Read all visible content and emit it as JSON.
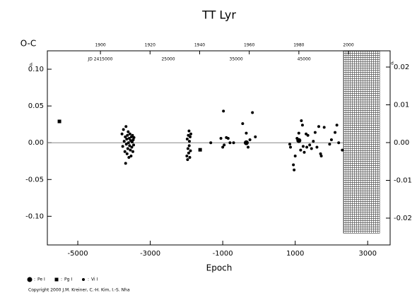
{
  "chart_data": {
    "type": "scatter",
    "title": "TT Lyr",
    "ylabel": "O-C",
    "xlabel": "Epoch",
    "y_unit": "d",
    "y2_unit": "d",
    "xlim": [
      -5840,
      3620
    ],
    "xticks": [
      -5000,
      -3000,
      -1000,
      1000,
      3000
    ],
    "ylim": [
      -0.139,
      0.125
    ],
    "yticks": [
      {
        "value": 0.1,
        "label": "0.10"
      },
      0.05,
      {
        "value": 0,
        "label": "0.00"
      },
      -0.05,
      {
        "value": -0.1,
        "label": "-0.10"
      }
    ],
    "y2lim": [
      -0.0271,
      0.0243
    ],
    "y2ticks": [
      0.02,
      0.01,
      {
        "value": 0,
        "label": "0.00"
      },
      -0.01,
      -0.02
    ],
    "x2lim": [
      1878.6,
      2016.8
    ],
    "x2ticks": [
      1900,
      1920,
      1940,
      1960,
      1980,
      2000
    ],
    "jdlim": [
      2407200,
      2457680
    ],
    "jdticks": [
      {
        "value": 2415000,
        "label": "JD 2415000"
      },
      {
        "value": 2425000,
        "label": "25000"
      },
      {
        "value": 2435000,
        "label": "35000"
      },
      {
        "value": 2445000,
        "label": "45000"
      }
    ],
    "shaded_region": {
      "x": [
        2330,
        3330
      ],
      "y": [
        -0.123,
        0.125
      ]
    },
    "legend_separator": ":",
    "series": [
      {
        "name": "Pe I",
        "marker": "circle",
        "color": "#000000",
        "x": [
          -350,
          1100
        ],
        "values": [
          0.0,
          0.003
        ]
      },
      {
        "name": "Pg I",
        "marker": "square",
        "color": "#000000",
        "x": [
          -5507,
          -1624
        ],
        "values": [
          0.029,
          -0.0096
        ]
      },
      {
        "name": "Vi I",
        "marker": "dot",
        "color": "#000000",
        "x": [
          -3780,
          -3760,
          -3740,
          -3720,
          -3700,
          -3690,
          -3680,
          -3670,
          -3660,
          -3650,
          -3640,
          -3630,
          -3620,
          -3610,
          -3600,
          -3590,
          -3580,
          -3570,
          -3560,
          -3550,
          -3540,
          -3530,
          -3520,
          -3510,
          -3500,
          -3490,
          -3480,
          -3470,
          -3460,
          -3450,
          -1990,
          -1980,
          -1970,
          -1960,
          -1950,
          -1940,
          -1930,
          -1925,
          -1920,
          -1910,
          -1900,
          -1890,
          -1880,
          -1330,
          -1050,
          -1000,
          -980,
          -960,
          -900,
          -850,
          -800,
          -700,
          -450,
          -350,
          -300,
          -250,
          -180,
          -100,
          850,
          870,
          950,
          970,
          1000,
          1050,
          1100,
          1150,
          1170,
          1200,
          1220,
          1250,
          1300,
          1320,
          1350,
          1400,
          1450,
          1500,
          1550,
          1600,
          1650,
          1700,
          1720,
          1800,
          1950,
          2000,
          2100,
          2150,
          2200,
          2300
        ],
        "values": [
          0.012,
          -0.005,
          0.018,
          0.002,
          -0.012,
          0.008,
          -0.028,
          0.022,
          -0.002,
          0.005,
          -0.015,
          0.01,
          -0.008,
          0.015,
          0.0,
          -0.02,
          0.006,
          -0.004,
          0.012,
          -0.01,
          0.003,
          -0.018,
          0.008,
          -0.006,
          0.001,
          0.01,
          -0.012,
          0.004,
          -0.003,
          0.007,
          -0.018,
          0.005,
          -0.023,
          -0.008,
          0.01,
          -0.014,
          0.016,
          -0.004,
          0.002,
          -0.02,
          0.008,
          -0.011,
          0.012,
          0.0,
          0.006,
          -0.006,
          0.043,
          -0.003,
          0.007,
          0.006,
          0.0,
          0.0,
          0.026,
          0.013,
          -0.006,
          0.004,
          0.041,
          0.008,
          -0.002,
          -0.006,
          -0.03,
          -0.037,
          -0.018,
          0.006,
          0.013,
          -0.01,
          0.03,
          0.024,
          -0.005,
          -0.013,
          0.012,
          -0.006,
          0.01,
          -0.003,
          -0.008,
          0.002,
          0.014,
          -0.006,
          0.022,
          -0.015,
          -0.018,
          0.021,
          -0.002,
          0.004,
          0.014,
          0.024,
          0.0,
          -0.01
        ]
      }
    ],
    "copyright": "Copyright 2000 J.M. Kreiner, C.-H. Kim, I.-S. Nha"
  }
}
